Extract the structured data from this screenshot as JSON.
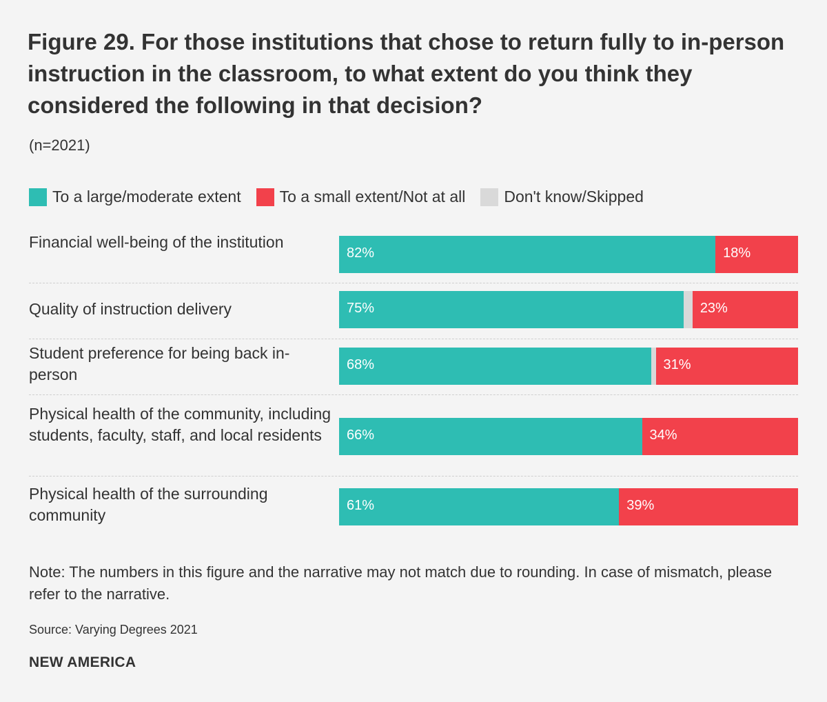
{
  "title": "Figure 29. For those institutions that chose to return fully to in-person instruction in the classroom, to what extent do you think they considered the following in that decision?",
  "subtitle": "(n=2021)",
  "legend": [
    {
      "label": "To a large/moderate extent",
      "color": "#2ebdb3"
    },
    {
      "label": "To a small extent/Not at all",
      "color": "#f2414b"
    },
    {
      "label": "Don't know/Skipped",
      "color": "#d9d9d9"
    }
  ],
  "chart_data": {
    "type": "bar",
    "orientation": "horizontal",
    "stacked": true,
    "title": "Figure 29. For those institutions that chose to return fully to in-person instruction in the classroom, to what extent do you think they considered the following in that decision?",
    "categories": [
      "Financial well-being of the institution",
      "Quality of instruction delivery",
      "Student preference for being back in-person",
      "Physical health of the community, including students, faculty, staff, and local residents",
      "Physical health of the surrounding community"
    ],
    "series": [
      {
        "name": "To a large/moderate extent",
        "color": "#2ebdb3",
        "values": [
          82,
          75,
          68,
          66,
          61
        ],
        "labels": [
          "82%",
          "75%",
          "68%",
          "66%",
          "61%"
        ]
      },
      {
        "name": "Don't know/Skipped",
        "color": "#d9d9d9",
        "values": [
          0,
          2,
          1,
          0,
          0
        ],
        "labels": [
          "",
          "",
          "",
          "",
          ""
        ]
      },
      {
        "name": "To a small extent/Not at all",
        "color": "#f2414b",
        "values": [
          18,
          23,
          31,
          34,
          39
        ],
        "labels": [
          "18%",
          "23%",
          "31%",
          "34%",
          "39%"
        ]
      }
    ],
    "xlim": [
      0,
      100
    ],
    "unit": "%"
  },
  "note": "Note: The numbers in this figure and the narrative may not match due to rounding. In case of mismatch, please refer to the narrative.",
  "source": "Source: Varying Degrees 2021",
  "brand": "NEW AMERICA"
}
